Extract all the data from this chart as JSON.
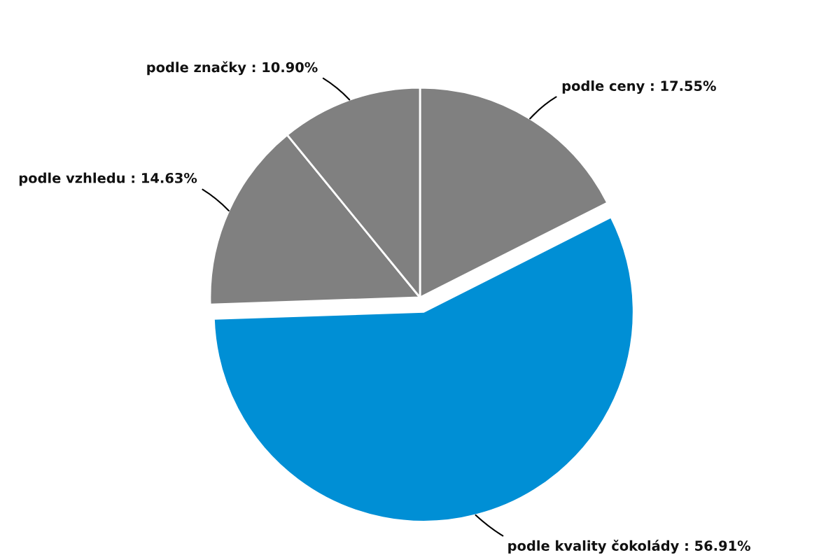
{
  "chart_data": {
    "type": "pie",
    "categories": [
      "podle ceny",
      "podle kvality čokolády",
      "podle vzhledu",
      "podle značky"
    ],
    "values": [
      17.55,
      56.91,
      14.63,
      10.9
    ],
    "colors": [
      "#808080",
      "#008fd5",
      "#808080",
      "#808080"
    ],
    "value_labels": [
      "17.55%",
      "56.91%",
      "14.63%",
      "10.90%"
    ]
  }
}
